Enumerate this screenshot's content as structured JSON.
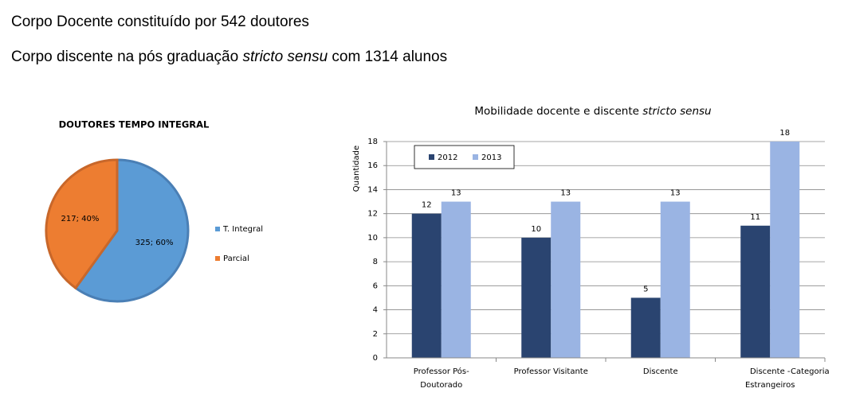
{
  "header": {
    "line1": "Corpo Docente constituído por 542 doutores",
    "line2": [
      "Corpo discente na pós graduação ",
      "stricto sensu",
      " com 1314 alunos"
    ]
  },
  "chart_data": [
    {
      "type": "pie",
      "title": "DOUTORES TEMPO INTEGRAL",
      "categories": [
        "T. Integral",
        "Parcial"
      ],
      "values": [
        325,
        217
      ],
      "value_labels": [
        "325; 60%",
        "217; 40%"
      ],
      "colors": [
        "#5b9bd5",
        "#ed7d31"
      ],
      "legend": "right"
    },
    {
      "type": "bar",
      "title": [
        "Mobilidade docente e discente ",
        "stricto sensu"
      ],
      "categories": [
        [
          "Professor Pós-",
          "Doutorado"
        ],
        [
          "Professor Visitante"
        ],
        [
          "Discente"
        ],
        [
          "Discente -",
          "Estrangeiros"
        ]
      ],
      "series": [
        {
          "name": "2012",
          "color": "#2a4470",
          "values": [
            12,
            10,
            5,
            11
          ]
        },
        {
          "name": "2013",
          "color": "#9ab4e3",
          "values": [
            13,
            13,
            13,
            18
          ]
        }
      ],
      "ylim": [
        0,
        18
      ],
      "yticks": [
        0,
        2,
        4,
        6,
        8,
        10,
        12,
        14,
        16,
        18
      ],
      "ylabel": "Quantidade",
      "xlabel": "Categoria",
      "grid": true,
      "legend": "top-left"
    }
  ]
}
